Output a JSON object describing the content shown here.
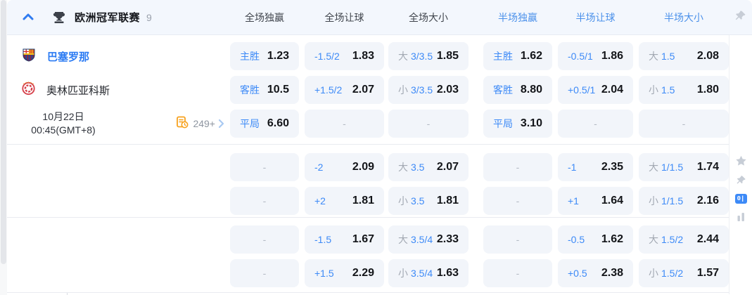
{
  "header": {
    "title": "欧洲冠军联赛",
    "count": "9",
    "columns": [
      "全场独赢",
      "全场让球",
      "全场大小",
      "半场独赢",
      "半场让球",
      "半场大小"
    ]
  },
  "match": {
    "home_team": "巴塞罗那",
    "away_team": "奥林匹亚科斯",
    "date_line1": "10月22日",
    "date_line2": "00:45(GMT+8)",
    "markets_count": "249+"
  },
  "misc": {
    "dash": "-",
    "rail_badge": "0|"
  },
  "colors": {
    "accent_blue": "#3d8af7",
    "home_team_blue": "#2b7bf3",
    "odds_text": "#131519",
    "muted_gray": "#a2a8b2",
    "cell_bg": "#f2f5fa",
    "header_bg": "#f3f7fd",
    "markets_orange": "#f7a21f",
    "icon_gray": "#c7cdd6"
  },
  "sections": [
    {
      "rows": [
        {
          "cells": [
            {
              "label": "主胜",
              "odds": "1.23"
            },
            {
              "label": "-1.5/2",
              "odds": "1.83"
            },
            {
              "prefix": "大",
              "label": "3/3.5",
              "odds": "1.85"
            },
            {
              "label": "主胜",
              "odds": "1.62"
            },
            {
              "label": "-0.5/1",
              "odds": "1.86"
            },
            {
              "prefix": "大",
              "label": "1.5",
              "odds": "2.08"
            }
          ]
        },
        {
          "cells": [
            {
              "label": "客胜",
              "odds": "10.5"
            },
            {
              "label": "+1.5/2",
              "odds": "2.07"
            },
            {
              "prefix": "小",
              "label": "3/3.5",
              "odds": "2.03"
            },
            {
              "label": "客胜",
              "odds": "8.80"
            },
            {
              "label": "+0.5/1",
              "odds": "2.04"
            },
            {
              "prefix": "小",
              "label": "1.5",
              "odds": "1.80"
            }
          ]
        },
        {
          "cells": [
            {
              "label": "平局",
              "odds": "6.60"
            },
            {
              "dash": true
            },
            {
              "dash": true
            },
            {
              "label": "平局",
              "odds": "3.10"
            },
            {
              "dash": true
            },
            {
              "dash": true
            }
          ]
        }
      ]
    },
    {
      "rows": [
        {
          "cells": [
            {
              "dash": true
            },
            {
              "label": "-2",
              "odds": "2.09"
            },
            {
              "prefix": "大",
              "label": "3.5",
              "odds": "2.07"
            },
            {
              "dash": true
            },
            {
              "label": "-1",
              "odds": "2.35"
            },
            {
              "prefix": "大",
              "label": "1/1.5",
              "odds": "1.74"
            }
          ]
        },
        {
          "cells": [
            {
              "dash": true
            },
            {
              "label": "+2",
              "odds": "1.81"
            },
            {
              "prefix": "小",
              "label": "3.5",
              "odds": "1.81"
            },
            {
              "dash": true
            },
            {
              "label": "+1",
              "odds": "1.64"
            },
            {
              "prefix": "小",
              "label": "1/1.5",
              "odds": "2.16"
            }
          ]
        }
      ]
    },
    {
      "rows": [
        {
          "cells": [
            {
              "dash": true
            },
            {
              "label": "-1.5",
              "odds": "1.67"
            },
            {
              "prefix": "大",
              "label": "3.5/4",
              "odds": "2.33"
            },
            {
              "dash": true
            },
            {
              "label": "-0.5",
              "odds": "1.62"
            },
            {
              "prefix": "大",
              "label": "1.5/2",
              "odds": "2.44"
            }
          ]
        },
        {
          "cells": [
            {
              "dash": true
            },
            {
              "label": "+1.5",
              "odds": "2.29"
            },
            {
              "prefix": "小",
              "label": "3.5/4",
              "odds": "1.63"
            },
            {
              "dash": true
            },
            {
              "label": "+0.5",
              "odds": "2.38"
            },
            {
              "prefix": "小",
              "label": "1.5/2",
              "odds": "1.57"
            }
          ]
        }
      ]
    }
  ]
}
